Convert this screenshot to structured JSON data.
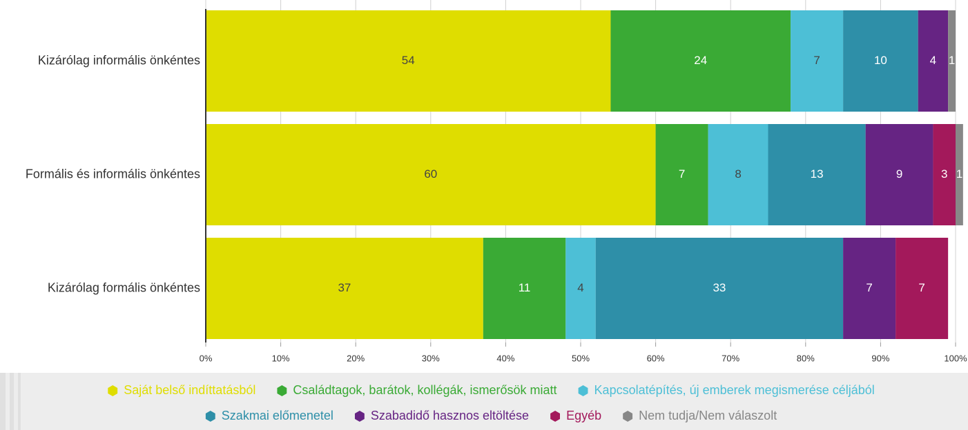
{
  "chart_data": {
    "type": "stacked_barh",
    "categories": [
      "Kizárólag informális önkéntes",
      "Formális és informális önkéntes",
      "Kizárólag formális önkéntes"
    ],
    "series": [
      {
        "name": "Saját belső indíttatásból",
        "color": "#dfdd00",
        "values": [
          54,
          60,
          37
        ]
      },
      {
        "name": "Családtagok, barátok, kollégák, ismerősök miatt",
        "color": "#3aaa35",
        "values": [
          24,
          7,
          11
        ]
      },
      {
        "name": "Kapcsolatépítés, új emberek megismerése céljából",
        "color": "#4dbfd6",
        "values": [
          7,
          8,
          4
        ]
      },
      {
        "name": "Szakmai előmenetel",
        "color": "#2e8fa8",
        "values": [
          10,
          13,
          33
        ]
      },
      {
        "name": "Szabadidő hasznos eltöltése",
        "color": "#662483",
        "values": [
          4,
          9,
          7
        ]
      },
      {
        "name": "Egyéb",
        "color": "#a3195b",
        "values": [
          null,
          3,
          7
        ]
      },
      {
        "name": "Nem tudja/Nem válaszolt",
        "color": "#878787",
        "values": [
          1,
          1,
          null
        ]
      }
    ],
    "xlim": [
      0,
      100
    ],
    "xticks": [
      {
        "value": 0,
        "label": "0%"
      },
      {
        "value": 10,
        "label": "10%"
      },
      {
        "value": 20,
        "label": "20%"
      },
      {
        "value": 30,
        "label": "30%"
      },
      {
        "value": 40,
        "label": "40%"
      },
      {
        "value": 50,
        "label": "50%"
      },
      {
        "value": 60,
        "label": "60%"
      },
      {
        "value": 70,
        "label": "70%"
      },
      {
        "value": 80,
        "label": "80%"
      },
      {
        "value": 90,
        "label": "90%"
      },
      {
        "value": 100,
        "label": "100%"
      }
    ],
    "grid": true,
    "legend": "bottom"
  }
}
